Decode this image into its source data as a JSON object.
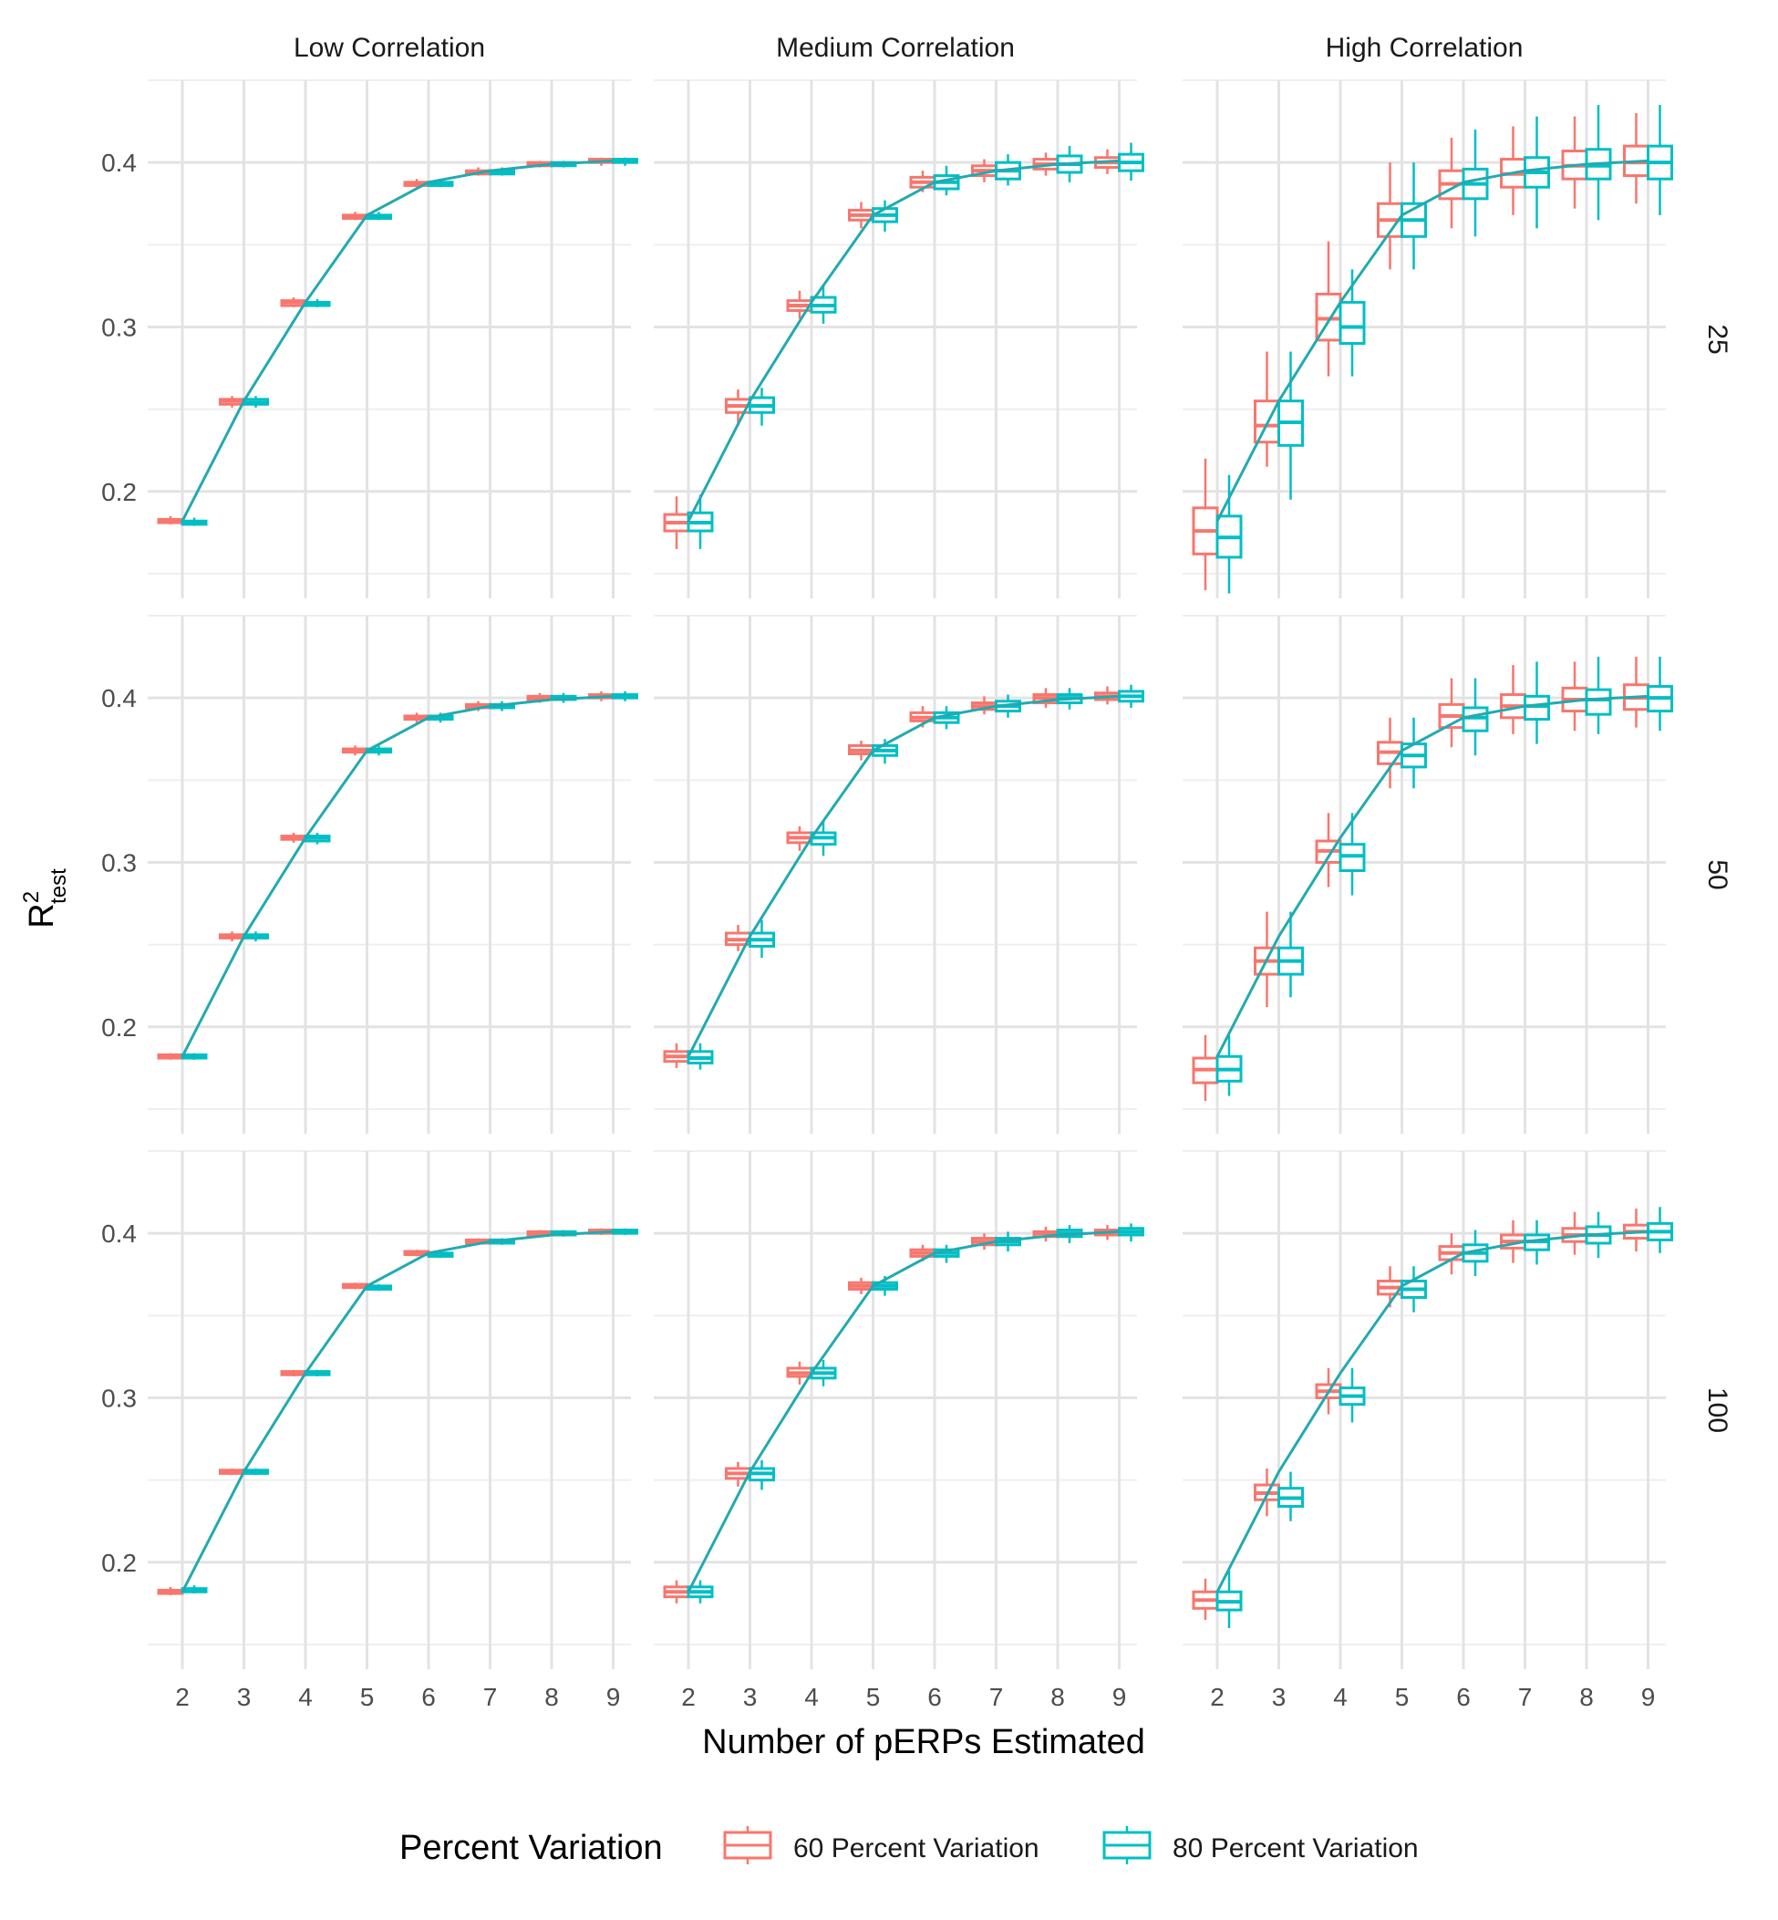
{
  "chart_data": {
    "type": "box",
    "xlabel": "Number of pERPs Estimated",
    "ylabel": "R",
    "ylabel_sup": "2",
    "ylabel_sub": "test",
    "x_categories": [
      "2",
      "3",
      "4",
      "5",
      "6",
      "7",
      "8",
      "9"
    ],
    "y_ticks": [
      "0.2",
      "0.3",
      "0.4"
    ],
    "ylim": [
      0.135,
      0.45
    ],
    "columns": [
      "Low Correlation",
      "Medium Correlation",
      "High Correlation"
    ],
    "rows": [
      "25",
      "50",
      "100"
    ],
    "legend": {
      "title": "Percent Variation",
      "position": "bottom",
      "entries": [
        {
          "name": "60 Percent Variation",
          "color": "#F8766D"
        },
        {
          "name": "80 Percent Variation",
          "color": "#00BFC4"
        }
      ]
    },
    "colors": {
      "s60": "#F8766D",
      "s80": "#00BFC4",
      "line": "#22AAB0"
    },
    "reference_line": {
      "x": [
        2,
        3,
        4,
        5,
        6,
        7,
        8,
        9
      ],
      "y": [
        0.182,
        0.255,
        0.315,
        0.368,
        0.388,
        0.395,
        0.399,
        0.401
      ]
    },
    "panels": [
      {
        "col": 0,
        "row": 0,
        "s60": [
          [
            0.18,
            0.181,
            0.182,
            0.183,
            0.185
          ],
          [
            0.251,
            0.253,
            0.255,
            0.256,
            0.258
          ],
          [
            0.312,
            0.313,
            0.315,
            0.316,
            0.318
          ],
          [
            0.365,
            0.366,
            0.367,
            0.368,
            0.37
          ],
          [
            0.385,
            0.386,
            0.387,
            0.388,
            0.39
          ],
          [
            0.392,
            0.393,
            0.394,
            0.395,
            0.397
          ],
          [
            0.397,
            0.398,
            0.399,
            0.4,
            0.401
          ],
          [
            0.398,
            0.4,
            0.401,
            0.402,
            0.403
          ]
        ],
        "s80": [
          [
            0.179,
            0.18,
            0.181,
            0.182,
            0.184
          ],
          [
            0.251,
            0.253,
            0.254,
            0.256,
            0.258
          ],
          [
            0.312,
            0.313,
            0.314,
            0.315,
            0.317
          ],
          [
            0.365,
            0.366,
            0.367,
            0.368,
            0.37
          ],
          [
            0.385,
            0.386,
            0.387,
            0.388,
            0.39
          ],
          [
            0.392,
            0.393,
            0.394,
            0.395,
            0.397
          ],
          [
            0.397,
            0.398,
            0.399,
            0.4,
            0.401
          ],
          [
            0.398,
            0.4,
            0.401,
            0.402,
            0.403
          ]
        ]
      },
      {
        "col": 1,
        "row": 0,
        "s60": [
          [
            0.165,
            0.176,
            0.181,
            0.186,
            0.197
          ],
          [
            0.24,
            0.248,
            0.252,
            0.256,
            0.262
          ],
          [
            0.305,
            0.31,
            0.313,
            0.316,
            0.322
          ],
          [
            0.36,
            0.365,
            0.368,
            0.371,
            0.376
          ],
          [
            0.382,
            0.385,
            0.388,
            0.391,
            0.395
          ],
          [
            0.388,
            0.392,
            0.395,
            0.398,
            0.402
          ],
          [
            0.392,
            0.396,
            0.399,
            0.402,
            0.406
          ],
          [
            0.393,
            0.397,
            0.4,
            0.403,
            0.408
          ]
        ],
        "s80": [
          [
            0.165,
            0.176,
            0.181,
            0.187,
            0.198
          ],
          [
            0.24,
            0.248,
            0.252,
            0.257,
            0.263
          ],
          [
            0.302,
            0.309,
            0.313,
            0.318,
            0.325
          ],
          [
            0.358,
            0.364,
            0.368,
            0.372,
            0.377
          ],
          [
            0.38,
            0.384,
            0.388,
            0.392,
            0.398
          ],
          [
            0.386,
            0.39,
            0.395,
            0.4,
            0.405
          ],
          [
            0.388,
            0.394,
            0.399,
            0.404,
            0.41
          ],
          [
            0.389,
            0.395,
            0.4,
            0.405,
            0.412
          ]
        ]
      },
      {
        "col": 2,
        "row": 0,
        "s60": [
          [
            0.14,
            0.162,
            0.176,
            0.19,
            0.22
          ],
          [
            0.215,
            0.23,
            0.24,
            0.255,
            0.285
          ],
          [
            0.27,
            0.292,
            0.305,
            0.32,
            0.352
          ],
          [
            0.335,
            0.355,
            0.365,
            0.375,
            0.4
          ],
          [
            0.36,
            0.378,
            0.387,
            0.395,
            0.415
          ],
          [
            0.368,
            0.385,
            0.393,
            0.402,
            0.422
          ],
          [
            0.372,
            0.39,
            0.398,
            0.407,
            0.428
          ],
          [
            0.375,
            0.392,
            0.4,
            0.41,
            0.43
          ]
        ],
        "s80": [
          [
            0.138,
            0.16,
            0.172,
            0.185,
            0.21
          ],
          [
            0.195,
            0.228,
            0.242,
            0.255,
            0.285
          ],
          [
            0.27,
            0.29,
            0.3,
            0.315,
            0.335
          ],
          [
            0.335,
            0.355,
            0.365,
            0.375,
            0.4
          ],
          [
            0.355,
            0.378,
            0.387,
            0.396,
            0.42
          ],
          [
            0.36,
            0.385,
            0.394,
            0.403,
            0.428
          ],
          [
            0.365,
            0.39,
            0.398,
            0.408,
            0.435
          ],
          [
            0.368,
            0.39,
            0.4,
            0.41,
            0.435
          ]
        ]
      },
      {
        "col": 0,
        "row": 1,
        "s60": [
          [
            0.18,
            0.181,
            0.182,
            0.183,
            0.184
          ],
          [
            0.252,
            0.254,
            0.255,
            0.256,
            0.258
          ],
          [
            0.312,
            0.314,
            0.315,
            0.316,
            0.318
          ],
          [
            0.365,
            0.367,
            0.368,
            0.369,
            0.371
          ],
          [
            0.385,
            0.387,
            0.388,
            0.389,
            0.391
          ],
          [
            0.392,
            0.394,
            0.395,
            0.396,
            0.398
          ],
          [
            0.397,
            0.399,
            0.4,
            0.401,
            0.403
          ],
          [
            0.398,
            0.4,
            0.401,
            0.402,
            0.404
          ]
        ],
        "s80": [
          [
            0.18,
            0.181,
            0.182,
            0.183,
            0.184
          ],
          [
            0.252,
            0.254,
            0.255,
            0.256,
            0.258
          ],
          [
            0.311,
            0.313,
            0.315,
            0.316,
            0.318
          ],
          [
            0.365,
            0.367,
            0.368,
            0.369,
            0.371
          ],
          [
            0.385,
            0.387,
            0.388,
            0.389,
            0.391
          ],
          [
            0.392,
            0.394,
            0.395,
            0.396,
            0.398
          ],
          [
            0.397,
            0.399,
            0.4,
            0.401,
            0.403
          ],
          [
            0.398,
            0.4,
            0.401,
            0.402,
            0.404
          ]
        ]
      },
      {
        "col": 1,
        "row": 1,
        "s60": [
          [
            0.175,
            0.179,
            0.182,
            0.185,
            0.19
          ],
          [
            0.246,
            0.25,
            0.253,
            0.257,
            0.262
          ],
          [
            0.307,
            0.312,
            0.315,
            0.318,
            0.322
          ],
          [
            0.362,
            0.366,
            0.368,
            0.371,
            0.374
          ],
          [
            0.382,
            0.386,
            0.388,
            0.391,
            0.395
          ],
          [
            0.39,
            0.393,
            0.395,
            0.397,
            0.401
          ],
          [
            0.394,
            0.397,
            0.4,
            0.402,
            0.406
          ],
          [
            0.396,
            0.399,
            0.401,
            0.403,
            0.407
          ]
        ],
        "s80": [
          [
            0.174,
            0.178,
            0.181,
            0.185,
            0.19
          ],
          [
            0.242,
            0.249,
            0.253,
            0.257,
            0.265
          ],
          [
            0.304,
            0.311,
            0.315,
            0.318,
            0.325
          ],
          [
            0.36,
            0.365,
            0.368,
            0.371,
            0.375
          ],
          [
            0.381,
            0.385,
            0.388,
            0.391,
            0.395
          ],
          [
            0.388,
            0.392,
            0.395,
            0.398,
            0.402
          ],
          [
            0.393,
            0.397,
            0.4,
            0.402,
            0.406
          ],
          [
            0.394,
            0.398,
            0.401,
            0.404,
            0.408
          ]
        ]
      },
      {
        "col": 2,
        "row": 1,
        "s60": [
          [
            0.155,
            0.166,
            0.174,
            0.181,
            0.195
          ],
          [
            0.212,
            0.232,
            0.24,
            0.248,
            0.27
          ],
          [
            0.285,
            0.3,
            0.307,
            0.313,
            0.33
          ],
          [
            0.345,
            0.36,
            0.367,
            0.373,
            0.388
          ],
          [
            0.37,
            0.382,
            0.389,
            0.396,
            0.412
          ],
          [
            0.378,
            0.388,
            0.395,
            0.402,
            0.42
          ],
          [
            0.38,
            0.392,
            0.399,
            0.406,
            0.422
          ],
          [
            0.382,
            0.393,
            0.4,
            0.408,
            0.425
          ]
        ],
        "s80": [
          [
            0.158,
            0.167,
            0.174,
            0.182,
            0.195
          ],
          [
            0.218,
            0.232,
            0.24,
            0.248,
            0.27
          ],
          [
            0.28,
            0.295,
            0.304,
            0.311,
            0.33
          ],
          [
            0.345,
            0.358,
            0.365,
            0.372,
            0.388
          ],
          [
            0.365,
            0.38,
            0.388,
            0.394,
            0.412
          ],
          [
            0.372,
            0.387,
            0.395,
            0.401,
            0.422
          ],
          [
            0.378,
            0.39,
            0.399,
            0.405,
            0.425
          ],
          [
            0.38,
            0.392,
            0.4,
            0.407,
            0.425
          ]
        ]
      },
      {
        "col": 0,
        "row": 2,
        "s60": [
          [
            0.18,
            0.181,
            0.182,
            0.183,
            0.185
          ],
          [
            0.253,
            0.254,
            0.255,
            0.256,
            0.257
          ],
          [
            0.313,
            0.314,
            0.315,
            0.316,
            0.317
          ],
          [
            0.366,
            0.367,
            0.368,
            0.369,
            0.37
          ],
          [
            0.386,
            0.387,
            0.388,
            0.389,
            0.39
          ],
          [
            0.393,
            0.394,
            0.395,
            0.396,
            0.397
          ],
          [
            0.398,
            0.399,
            0.4,
            0.401,
            0.402
          ],
          [
            0.399,
            0.4,
            0.401,
            0.402,
            0.403
          ]
        ],
        "s80": [
          [
            0.181,
            0.182,
            0.183,
            0.184,
            0.186
          ],
          [
            0.253,
            0.254,
            0.255,
            0.256,
            0.257
          ],
          [
            0.313,
            0.314,
            0.315,
            0.316,
            0.317
          ],
          [
            0.365,
            0.366,
            0.367,
            0.368,
            0.369
          ],
          [
            0.385,
            0.386,
            0.387,
            0.388,
            0.39
          ],
          [
            0.393,
            0.394,
            0.395,
            0.396,
            0.397
          ],
          [
            0.398,
            0.399,
            0.4,
            0.401,
            0.402
          ],
          [
            0.399,
            0.4,
            0.401,
            0.402,
            0.403
          ]
        ]
      },
      {
        "col": 1,
        "row": 2,
        "s60": [
          [
            0.175,
            0.179,
            0.182,
            0.185,
            0.189
          ],
          [
            0.246,
            0.251,
            0.254,
            0.257,
            0.261
          ],
          [
            0.308,
            0.313,
            0.315,
            0.318,
            0.322
          ],
          [
            0.363,
            0.366,
            0.368,
            0.37,
            0.373
          ],
          [
            0.383,
            0.386,
            0.388,
            0.39,
            0.393
          ],
          [
            0.39,
            0.393,
            0.395,
            0.397,
            0.4
          ],
          [
            0.395,
            0.398,
            0.4,
            0.401,
            0.404
          ],
          [
            0.396,
            0.399,
            0.401,
            0.402,
            0.405
          ]
        ],
        "s80": [
          [
            0.175,
            0.179,
            0.182,
            0.185,
            0.189
          ],
          [
            0.244,
            0.25,
            0.254,
            0.257,
            0.262
          ],
          [
            0.307,
            0.312,
            0.315,
            0.318,
            0.323
          ],
          [
            0.362,
            0.366,
            0.368,
            0.37,
            0.374
          ],
          [
            0.382,
            0.386,
            0.388,
            0.39,
            0.393
          ],
          [
            0.389,
            0.393,
            0.395,
            0.397,
            0.401
          ],
          [
            0.394,
            0.398,
            0.4,
            0.402,
            0.405
          ],
          [
            0.395,
            0.399,
            0.401,
            0.403,
            0.406
          ]
        ]
      },
      {
        "col": 2,
        "row": 2,
        "s60": [
          [
            0.165,
            0.172,
            0.177,
            0.182,
            0.19
          ],
          [
            0.228,
            0.238,
            0.242,
            0.247,
            0.257
          ],
          [
            0.29,
            0.3,
            0.304,
            0.308,
            0.318
          ],
          [
            0.355,
            0.363,
            0.367,
            0.371,
            0.38
          ],
          [
            0.375,
            0.384,
            0.388,
            0.392,
            0.4
          ],
          [
            0.382,
            0.391,
            0.395,
            0.399,
            0.408
          ],
          [
            0.387,
            0.395,
            0.399,
            0.403,
            0.413
          ],
          [
            0.389,
            0.397,
            0.401,
            0.405,
            0.415
          ]
        ],
        "s80": [
          [
            0.16,
            0.171,
            0.176,
            0.182,
            0.195
          ],
          [
            0.225,
            0.234,
            0.239,
            0.245,
            0.255
          ],
          [
            0.285,
            0.296,
            0.301,
            0.306,
            0.318
          ],
          [
            0.352,
            0.361,
            0.366,
            0.371,
            0.38
          ],
          [
            0.374,
            0.383,
            0.388,
            0.393,
            0.402
          ],
          [
            0.381,
            0.39,
            0.395,
            0.399,
            0.408
          ],
          [
            0.385,
            0.394,
            0.399,
            0.404,
            0.413
          ],
          [
            0.388,
            0.396,
            0.401,
            0.406,
            0.416
          ]
        ]
      }
    ]
  }
}
